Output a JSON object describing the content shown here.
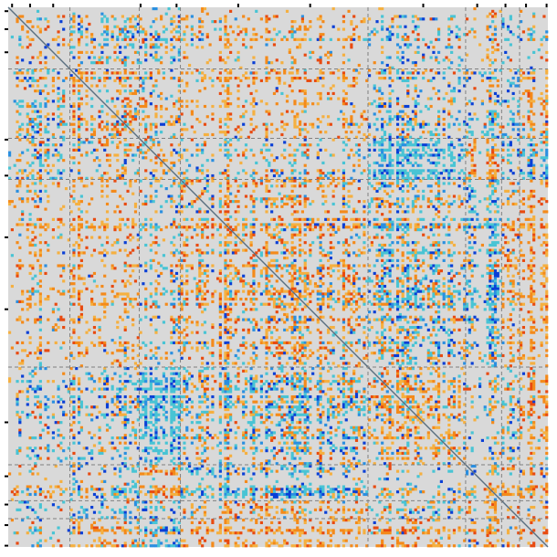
{
  "chart_data": {
    "type": "heatmap",
    "title": "",
    "xlabel": "",
    "ylabel": "",
    "n": 210,
    "colors": {
      "background": "#d9d9d9",
      "diagonal": "#5a6f80",
      "divider": "#808080",
      "strong_negative": "#0a3fd6",
      "negative": "#2a8fe0",
      "weak_negative": "#48c4d4",
      "weak_positive": "#f5b040",
      "positive": "#f48a1a",
      "strong_positive": "#e84a10"
    },
    "block_boundaries": [
      24,
      51,
      67,
      140,
      178,
      192,
      199
    ],
    "tick_positions": [
      1,
      8,
      17,
      51,
      65,
      89,
      117,
      161,
      182,
      193,
      201,
      209
    ],
    "grid": false,
    "legend": "none"
  }
}
